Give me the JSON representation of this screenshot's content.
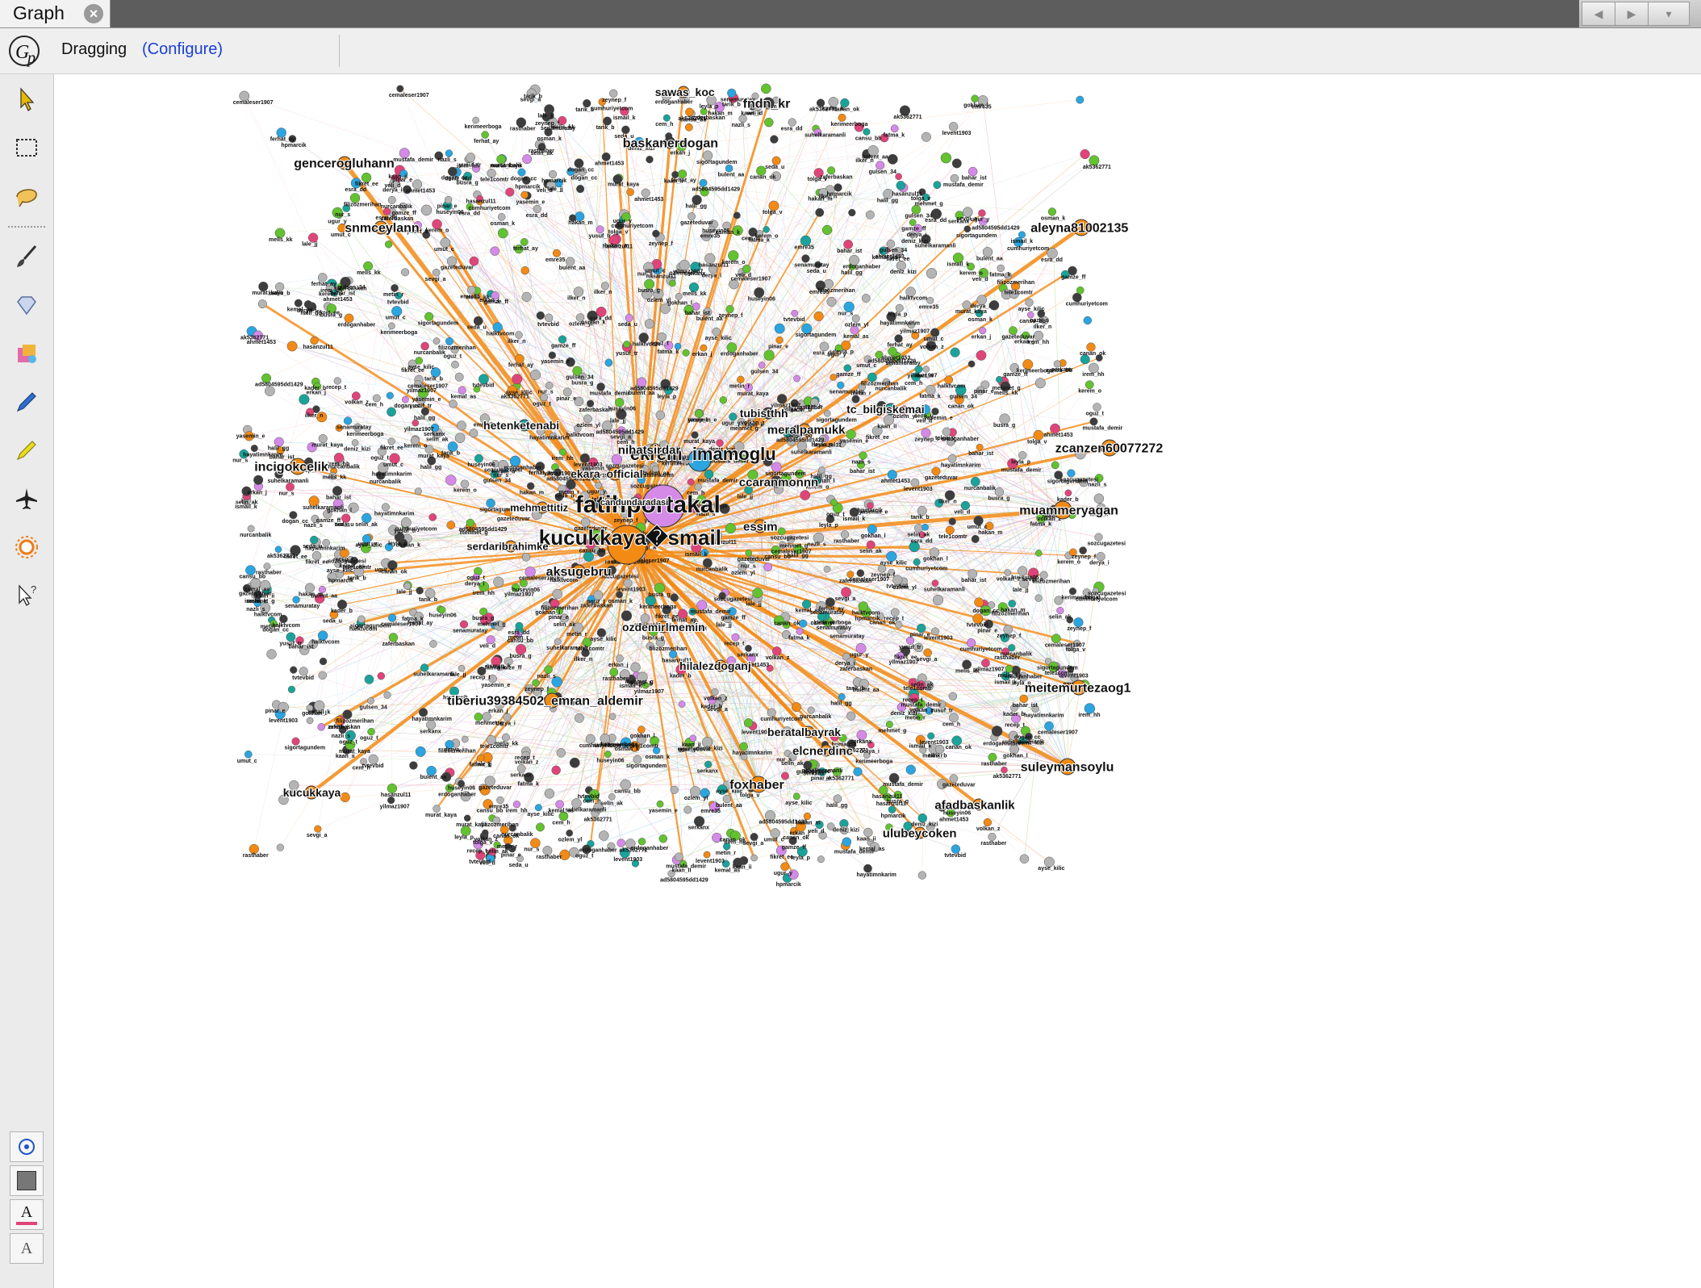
{
  "tab": {
    "title": "Graph",
    "close_icon": "close-icon"
  },
  "toolbar": {
    "mode": "Dragging",
    "configure": "(Configure)"
  },
  "left_tools": [
    {
      "name": "select-arrow-icon"
    },
    {
      "name": "rectangle-select-icon"
    },
    {
      "name": "lasso-select-icon"
    },
    {
      "name": "brush-icon"
    },
    {
      "name": "diamond-icon"
    },
    {
      "name": "painter-icon"
    },
    {
      "name": "pencil-icon"
    },
    {
      "name": "highlighter-icon"
    },
    {
      "name": "airplane-icon"
    },
    {
      "name": "sun-icon"
    },
    {
      "name": "pointer-help-icon"
    }
  ],
  "bottom_tools": [
    {
      "name": "node-size-icon"
    },
    {
      "name": "background-color-icon"
    },
    {
      "name": "label-color-icon",
      "text": "A"
    },
    {
      "name": "label-size-icon",
      "text": "A"
    }
  ],
  "colors": {
    "orange": "#f28a14",
    "violet": "#d48ae6",
    "blue": "#2ba5e0",
    "green": "#62c22f",
    "teal": "#1aa39a",
    "gray": "#b4b4b4",
    "dark": "#3d3d3d",
    "pink": "#e0457a"
  },
  "graph": {
    "main_labels": [
      {
        "text": "fatihportakal",
        "node": "violet"
      },
      {
        "text": "ekrem_imamoglu",
        "node": "blue"
      },
      {
        "text": "kucukkaya�smail",
        "node": "orange"
      },
      {
        "text": "nihatsirdar",
        "node": "orange"
      },
      {
        "text": "ccaranmonnn",
        "node": "dark"
      },
      {
        "text": "essim",
        "node": "orange"
      },
      {
        "text": "aksugebru",
        "node": "orange"
      },
      {
        "text": "muammeryagan",
        "node": "orange"
      },
      {
        "text": "meitemurtezaog1",
        "node": "orange"
      },
      {
        "text": "tiberiu39384502_emran_aldemir",
        "node": "orange"
      },
      {
        "text": "foxhaber",
        "node": "orange"
      },
      {
        "text": "suleymansoylu",
        "node": "orange"
      },
      {
        "text": "aleyna81002135",
        "node": "orange"
      },
      {
        "text": "zcanzen60077272",
        "node": "orange"
      },
      {
        "text": "incigokcelik",
        "node": "orange"
      },
      {
        "text": "gencerogluhann",
        "node": "orange"
      },
      {
        "text": "snmceylann",
        "node": "orange"
      },
      {
        "text": "baskanerdogan",
        "node": "dark"
      },
      {
        "text": "fndn_kr",
        "node": "dark"
      },
      {
        "text": "meralpamukk",
        "node": "orange"
      },
      {
        "text": "tubistthh",
        "node": "dark"
      },
      {
        "text": "tc_bilgiskemai",
        "node": "teal"
      },
      {
        "text": "hetenketenabi",
        "node": "teal"
      },
      {
        "text": "ekara_official",
        "node": "orange"
      },
      {
        "text": "ozdemirlmemin",
        "node": "orange"
      },
      {
        "text": "serdaribrahimke",
        "node": "orange"
      },
      {
        "text": "mehmettitiz",
        "node": "orange"
      },
      {
        "text": "kucukkaya",
        "node": "orange"
      },
      {
        "text": "ulubeycoken",
        "node": "orange"
      },
      {
        "text": "afadbaskanlik",
        "node": "orange"
      },
      {
        "text": "elcnerdinc",
        "node": "orange"
      },
      {
        "text": "beratalbayrak",
        "node": "orange"
      },
      {
        "text": "sawas_koc",
        "node": "orange"
      },
      {
        "text": "hilalezdoganj",
        "node": "orange"
      },
      {
        "text": "candundaradasi",
        "node": "gray"
      }
    ],
    "small_labels": [
      "sigortagundem",
      "hpmarcik",
      "senamuratay",
      "hasanzul11",
      "ak5362771",
      "ad5804595dd1429",
      "suhelkaramanli",
      "cemaleser1907",
      "hayatimnkarim",
      "rasthaber",
      "nurcanbalik",
      "filizozmerihan",
      "tvtevbid",
      "kerimeerboga",
      "zaferbaskan",
      "ayse_kilic",
      "mustafa_demir",
      "yilmaz1907",
      "selin_ak",
      "erdoganhaber",
      "gazeteduvar",
      "cumhuriyetcom",
      "sozcugazetesi",
      "halktvcom",
      "tele1comtr",
      "kemal_as",
      "ozlem_yl",
      "ahmet1453",
      "murat_kaya",
      "emre35",
      "serkanx",
      "yusuf_tr",
      "bahar_ist",
      "canan_ok",
      "deniz_kizi",
      "ferhat_ay",
      "gulsen_34",
      "huseyin06",
      "ismail_k",
      "kader_b",
      "levent1903",
      "mehmet_g",
      "nazli_s",
      "osman_k",
      "pinar_e",
      "recep_t",
      "sevgi_a",
      "tarik_b",
      "umut_c",
      "veli_d",
      "yasemin_e",
      "zeynep_f",
      "busra_g",
      "cem_h",
      "derya_i",
      "erkan_j",
      "fatma_k",
      "gokhan_l",
      "hakan_m",
      "ilker_n",
      "kerem_o",
      "leyla_p",
      "metin_r",
      "nur_s",
      "oguz_t",
      "seda_u",
      "tolga_v",
      "ugur_y",
      "volkan_z",
      "bulent_aa",
      "cansu_bb",
      "dogan_cc",
      "esra_dd",
      "fikret_ee",
      "gamze_ff",
      "halil_gg",
      "irem_hh",
      "kaan_ii",
      "lale_jj",
      "melis_kk"
    ]
  }
}
